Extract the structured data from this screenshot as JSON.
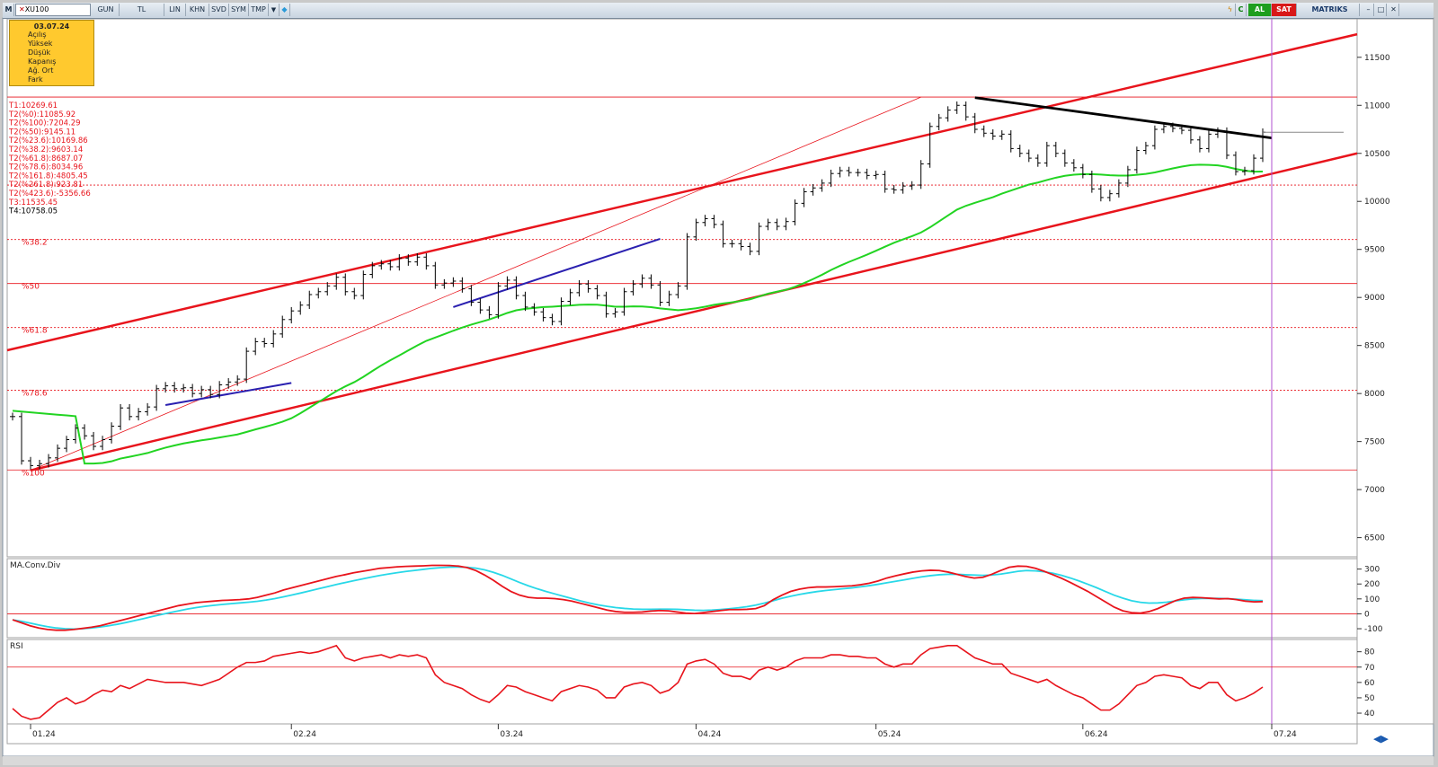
{
  "toolbar": {
    "m_label": "M",
    "symbol_mark": "✕",
    "symbol": "XU100",
    "buttons": [
      "GUN",
      "TL",
      "LIN",
      "KHN",
      "SVD",
      "SYM",
      "TMP"
    ],
    "right_c": "C",
    "al": "AL",
    "sat": "SAT",
    "brand": "MATRIKS"
  },
  "info_box": {
    "date": "03.07.24",
    "lines": [
      "Açılış",
      "Yüksek",
      "Düşük",
      "Kapanış",
      "Ağ. Ort",
      "Fark"
    ]
  },
  "fib_labels": [
    "T1:10269.61",
    "T2(%0):11085.92",
    "T2(%100):7204.29",
    "T2(%50):9145.11",
    "T2(%23.6):10169.86",
    "T2(%38.2):9603.14",
    "T2(%61.8):8687.07",
    "T2(%78.6):8034.96",
    "T2(%161.8):4805.45",
    "T2(%261.8):923.81",
    "T2(%423.6):-5356.66",
    "T3:11535.45",
    "T4:10758.05"
  ],
  "colors": {
    "channel": "#e8141c",
    "ma": "#22d422",
    "macd_fast": "#e8141c",
    "macd_signal": "#28d8e8",
    "rsi": "#e8141c",
    "trend_black": "#000000",
    "cursor_line": "#b050d0",
    "info_bg": "#ffc92e"
  },
  "chart_data": [
    {
      "type": "ohlc",
      "panel": "price",
      "x_tick_labels": [
        "01.24",
        "02.24",
        "03.24",
        "04.24",
        "05.24",
        "06.24",
        "07.24"
      ],
      "y_ticks": [
        6500,
        7000,
        7500,
        8000,
        8500,
        9000,
        9500,
        10000,
        10500,
        11000,
        11500
      ],
      "ylim": [
        6300,
        11900
      ],
      "fib_levels": [
        {
          "label": "%38.2",
          "value": 9603.14
        },
        {
          "label": "%50",
          "value": 9145.11
        },
        {
          "label": "%61.8",
          "value": 8687.07
        },
        {
          "label": "%78.6",
          "value": 8034.96
        },
        {
          "label": "%100",
          "value": 7204.29
        }
      ],
      "close": [
        7760,
        7300,
        7250,
        7270,
        7330,
        7430,
        7520,
        7640,
        7560,
        7450,
        7520,
        7660,
        7850,
        7760,
        7810,
        7860,
        8050,
        8080,
        8050,
        8060,
        8000,
        8040,
        7990,
        8090,
        8120,
        8150,
        8440,
        8540,
        8520,
        8620,
        8770,
        8860,
        8920,
        9030,
        9060,
        9120,
        9210,
        9060,
        9020,
        9240,
        9330,
        9350,
        9320,
        9410,
        9370,
        9420,
        9330,
        9130,
        9150,
        9170,
        9090,
        8950,
        8870,
        8820,
        9120,
        9180,
        9020,
        8900,
        8850,
        8790,
        8750,
        8960,
        9050,
        9140,
        9090,
        9020,
        8830,
        8850,
        9060,
        9140,
        9200,
        9130,
        8950,
        9030,
        9120,
        9630,
        9780,
        9820,
        9760,
        9560,
        9560,
        9530,
        9480,
        9740,
        9780,
        9740,
        9790,
        9980,
        10100,
        10140,
        10190,
        10290,
        10320,
        10300,
        10300,
        10270,
        10280,
        10130,
        10120,
        10160,
        10170,
        10390,
        10780,
        10870,
        10950,
        11000,
        10880,
        10750,
        10710,
        10680,
        10700,
        10550,
        10500,
        10450,
        10400,
        10580,
        10500,
        10400,
        10350,
        10280,
        10130,
        10040,
        10080,
        10190,
        10330,
        10530,
        10580,
        10750,
        10780,
        10760,
        10740,
        10640,
        10550,
        10700,
        10730,
        10480,
        10310,
        10320,
        10450,
        10720
      ]
    },
    {
      "type": "line",
      "panel": "macd",
      "title": "MA.Conv.Div",
      "y_ticks": [
        -100,
        0,
        100,
        200,
        300
      ],
      "ylim": [
        -160,
        370
      ],
      "series": [
        {
          "name": "MACD",
          "values": [
            -40,
            -60,
            -80,
            -95,
            -105,
            -110,
            -110,
            -105,
            -98,
            -90,
            -80,
            -65,
            -50,
            -35,
            -20,
            -5,
            10,
            25,
            40,
            55,
            65,
            75,
            80,
            85,
            90,
            92,
            95,
            100,
            110,
            125,
            140,
            160,
            175,
            190,
            205,
            220,
            235,
            250,
            262,
            275,
            285,
            295,
            305,
            310,
            315,
            318,
            320,
            322,
            325,
            325,
            324,
            320,
            310,
            290,
            260,
            225,
            185,
            150,
            125,
            110,
            105,
            105,
            102,
            95,
            85,
            70,
            55,
            40,
            25,
            15,
            10,
            10,
            12,
            18,
            22,
            20,
            12,
            5,
            2,
            8,
            15,
            22,
            28,
            28,
            30,
            35,
            55,
            95,
            125,
            150,
            165,
            175,
            180,
            180,
            182,
            185,
            188,
            195,
            205,
            220,
            240,
            255,
            268,
            280,
            288,
            292,
            290,
            280,
            265,
            250,
            240,
            245,
            265,
            290,
            312,
            320,
            318,
            305,
            285,
            262,
            238,
            210,
            180,
            150,
            115,
            80,
            45,
            20,
            8,
            5,
            15,
            35,
            62,
            88,
            105,
            110,
            108,
            104,
            100,
            102,
            95,
            85,
            80,
            82
          ]
        },
        {
          "name": "Signal",
          "values": [
            -40,
            -50,
            -62,
            -75,
            -86,
            -95,
            -100,
            -102,
            -100,
            -95,
            -88,
            -80,
            -70,
            -58,
            -45,
            -32,
            -18,
            -5,
            8,
            20,
            32,
            42,
            50,
            57,
            63,
            68,
            73,
            78,
            84,
            92,
            102,
            114,
            127,
            140,
            154,
            168,
            182,
            196,
            209,
            222,
            234,
            246,
            257,
            267,
            276,
            284,
            291,
            298,
            305,
            310,
            313,
            314,
            312,
            306,
            295,
            278,
            258,
            234,
            210,
            188,
            168,
            150,
            134,
            118,
            102,
            86,
            72,
            60,
            50,
            42,
            36,
            32,
            30,
            30,
            31,
            31,
            30,
            27,
            24,
            23,
            25,
            29,
            34,
            40,
            48,
            58,
            72,
            88,
            104,
            118,
            130,
            140,
            149,
            156,
            162,
            168,
            174,
            181,
            189,
            198,
            208,
            218,
            228,
            238,
            248,
            256,
            262,
            265,
            265,
            262,
            260,
            258,
            260,
            266,
            275,
            285,
            290,
            288,
            282,
            272,
            258,
            240,
            220,
            198,
            175,
            150,
            125,
            105,
            88,
            77,
            72,
            73,
            78,
            86,
            94,
            100,
            103,
            104,
            103,
            101,
            98,
            94,
            90,
            88
          ]
        }
      ]
    },
    {
      "type": "line",
      "panel": "rsi",
      "title": "RSI",
      "y_ticks": [
        40,
        50,
        60,
        70,
        80
      ],
      "ylim": [
        33,
        88
      ],
      "series": [
        {
          "name": "RSI",
          "values": [
            43,
            38,
            36,
            37,
            42,
            47,
            50,
            46,
            48,
            52,
            55,
            54,
            58,
            56,
            59,
            62,
            61,
            60,
            60,
            60,
            59,
            58,
            60,
            62,
            66,
            70,
            73,
            73,
            74,
            77,
            78,
            79,
            80,
            79,
            80,
            82,
            84,
            76,
            74,
            76,
            77,
            78,
            76,
            78,
            77,
            78,
            76,
            65,
            60,
            58,
            56,
            52,
            49,
            47,
            52,
            58,
            57,
            54,
            52,
            50,
            48,
            54,
            56,
            58,
            57,
            55,
            50,
            50,
            57,
            59,
            60,
            58,
            53,
            55,
            60,
            72,
            74,
            75,
            72,
            66,
            64,
            64,
            62,
            68,
            70,
            68,
            70,
            74,
            76,
            76,
            76,
            78,
            78,
            77,
            77,
            76,
            76,
            72,
            70,
            72,
            72,
            78,
            82,
            83,
            84,
            84,
            80,
            76,
            74,
            72,
            72,
            66,
            64,
            62,
            60,
            62,
            58,
            55,
            52,
            50,
            46,
            42,
            42,
            46,
            52,
            58,
            60,
            64,
            65,
            64,
            63,
            58,
            56,
            60,
            60,
            52,
            48,
            50,
            53,
            57
          ]
        }
      ],
      "reference_line": 70
    }
  ]
}
